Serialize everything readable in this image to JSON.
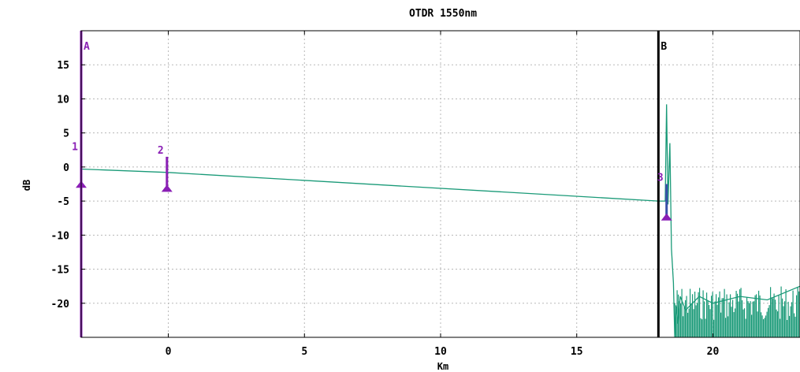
{
  "chart_data": {
    "type": "line",
    "title": "OTDR 1550nm",
    "xlabel": "Km",
    "ylabel": "dB",
    "xlim": [
      -3.2,
      23.2
    ],
    "ylim": [
      -25,
      20
    ],
    "x_ticks": [
      "0",
      "5",
      "10",
      "15",
      "20"
    ],
    "y_ticks": [
      "15",
      "10",
      "5",
      "0",
      "-5",
      "-10",
      "-15",
      "-20"
    ],
    "grid": true,
    "series": [
      {
        "color": "#1a9a78",
        "x": [
          -3.2,
          0.0,
          18.0,
          18.25,
          18.3,
          18.35,
          18.42,
          18.48,
          18.55,
          18.6,
          18.65,
          18.72,
          18.8,
          19.0,
          19.5,
          20.0,
          21.0,
          22.0,
          23.2
        ],
        "y": [
          -0.3,
          -0.8,
          -5.0,
          -5.0,
          9.2,
          -5.5,
          3.5,
          -12.0,
          -17.0,
          -25.0,
          -20.5,
          -23.0,
          -19.0,
          -21.0,
          -19.0,
          -20.0,
          -19.0,
          -19.5,
          -17.5
        ]
      }
    ],
    "noise_floor": {
      "x_start": 18.6,
      "x_end": 23.2,
      "y_min": -25,
      "y_max": -17.5
    },
    "cursors": [
      {
        "label": "A",
        "x": -3.2,
        "color": "#8a1fb5"
      },
      {
        "label": "B",
        "x": 18.0,
        "color": "#000000"
      }
    ],
    "markers": [
      {
        "label": "1",
        "x": -3.2,
        "y_top": 2.0,
        "y_base": -2.7
      },
      {
        "label": "2",
        "x": -0.05,
        "y_top": 1.5,
        "y_base": -3.3
      },
      {
        "label": "3",
        "x": 18.3,
        "y_top": -2.5,
        "y_base": -7.5
      }
    ],
    "colors": {
      "trace": "#1a9a78",
      "marker": "#8a1fb5",
      "marker_segment": "#3a4fa8",
      "grid": "#b8b8b8"
    }
  }
}
